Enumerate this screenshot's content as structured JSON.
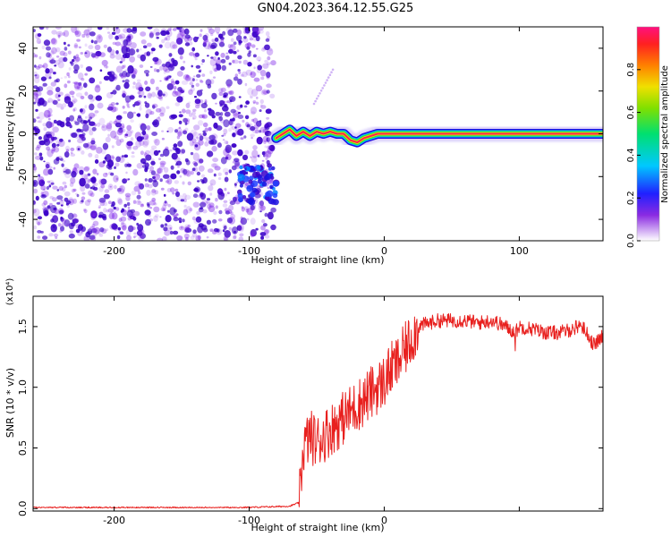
{
  "title": "GN04.2023.364.12.55.G25",
  "colors": {
    "snr_line": "#e8201e",
    "noise": "#7a1fe8",
    "noise_dark": "#3a00c8",
    "ridge_core": "#ff2050"
  },
  "chart_data": [
    {
      "type": "heatmap",
      "title": "",
      "xlabel": "Height of straight line (km)",
      "ylabel": "Frequency (Hz)",
      "xlim": [
        -260,
        162
      ],
      "ylim": [
        -50,
        50
      ],
      "x_ticks": [
        -200,
        -100,
        0,
        100
      ],
      "x_tick_labels": [
        "-200",
        "-100",
        "0",
        "100"
      ],
      "y_ticks": [
        -40,
        -20,
        0,
        20,
        40
      ],
      "y_tick_labels": [
        "-40",
        "-20",
        "0",
        "20",
        "40"
      ],
      "colorbar": {
        "label": "Normalized spectral amplitude",
        "range": [
          0,
          1
        ],
        "ticks": [
          0.0,
          0.2,
          0.4,
          0.6,
          0.8
        ],
        "tick_labels": [
          "0.0",
          "0.2",
          "0.4",
          "0.6",
          "0.8"
        ]
      },
      "noise_region_x": [
        -260,
        -82
      ],
      "ridge": {
        "points": [
          [
            -80,
            -2
          ],
          [
            -75,
            0
          ],
          [
            -70,
            2
          ],
          [
            -65,
            -1
          ],
          [
            -60,
            1
          ],
          [
            -55,
            -1
          ],
          [
            -50,
            1
          ],
          [
            -45,
            0
          ],
          [
            -40,
            1
          ],
          [
            -35,
            0
          ],
          [
            -30,
            0
          ],
          [
            -25,
            -3
          ],
          [
            -20,
            -4
          ],
          [
            -15,
            -2
          ],
          [
            -10,
            -1
          ],
          [
            -5,
            0
          ],
          [
            0,
            0
          ],
          [
            5,
            0
          ],
          [
            162,
            0
          ]
        ]
      },
      "blob": {
        "x": [
          -107,
          -80
        ],
        "y": [
          -32,
          -15
        ]
      },
      "streak": {
        "x": [
          -52,
          -38
        ],
        "y": [
          14,
          30
        ]
      }
    },
    {
      "type": "line",
      "title": "",
      "xlabel": "Height of straight line (km)",
      "ylabel": "SNR (10 * v/v)",
      "y_scale_label": "(x10⁴)",
      "xlim": [
        -260,
        162
      ],
      "ylim": [
        -0.02,
        1.75
      ],
      "x_ticks": [
        -200,
        -100,
        0
      ],
      "x_tick_labels": [
        "-200",
        "-100",
        "0"
      ],
      "y_ticks": [
        0.0,
        0.5,
        1.0,
        1.5
      ],
      "y_tick_labels": [
        "0.0",
        "0.5",
        "1.0",
        "1.5"
      ],
      "series": [
        {
          "x": [
            -260,
            -200,
            -150,
            -100,
            -70,
            -63,
            -60,
            -55,
            -50,
            -45,
            -40,
            -35,
            -30,
            -25,
            -20,
            -15,
            -10,
            -5,
            0,
            5,
            10,
            15,
            20,
            25,
            30,
            40,
            50,
            60,
            70,
            80,
            90,
            97,
            100,
            110,
            120,
            130,
            140,
            145,
            150,
            155,
            162
          ],
          "y": [
            0.0,
            0.0,
            0.0,
            0.01,
            0.02,
            0.05,
            0.5,
            0.6,
            0.55,
            0.6,
            0.65,
            0.7,
            0.75,
            0.8,
            0.85,
            0.9,
            0.95,
            1.0,
            1.05,
            1.15,
            1.2,
            1.3,
            1.4,
            1.5,
            1.52,
            1.55,
            1.55,
            1.55,
            1.53,
            1.55,
            1.5,
            1.45,
            1.5,
            1.48,
            1.45,
            1.45,
            1.48,
            1.52,
            1.45,
            1.35,
            1.42
          ]
        }
      ]
    }
  ]
}
